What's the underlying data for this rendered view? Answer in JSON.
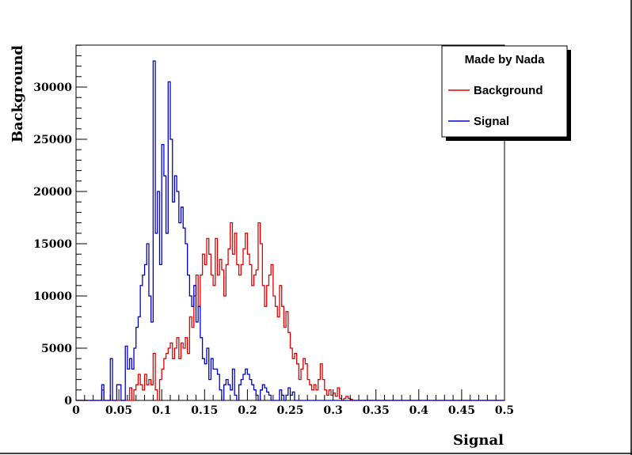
{
  "chart_data": {
    "type": "line",
    "title": "",
    "xlabel": "Signal",
    "ylabel": "Background",
    "xlim": [
      0,
      0.5
    ],
    "ylim": [
      0,
      34000
    ],
    "x_ticks": [
      "0",
      "0.05",
      "0.1",
      "0.15",
      "0.2",
      "0.25",
      "0.3",
      "0.35",
      "0.4",
      "0.45",
      "0.5"
    ],
    "y_ticks": [
      "0",
      "5000",
      "10000",
      "15000",
      "20000",
      "25000",
      "30000"
    ],
    "legend": {
      "header": "Made by Nada",
      "placement": "top-right",
      "entries": [
        "Background",
        "Signal"
      ]
    },
    "bin_width": 0.0025,
    "series": [
      {
        "name": "Background",
        "color": "#e00000",
        "x_start": 0.0,
        "values": [
          0,
          0,
          0,
          0,
          0,
          0,
          0,
          0,
          0,
          0,
          0,
          0,
          1000,
          0,
          0,
          0,
          0,
          0,
          0,
          0,
          0,
          0,
          0,
          0,
          0,
          1200,
          0,
          1000,
          1500,
          2500,
          1500,
          1000,
          2500,
          1500,
          2000,
          1500,
          4500,
          1000,
          0,
          2000,
          3000,
          4000,
          4500,
          5000,
          5500,
          4000,
          5000,
          6000,
          4000,
          5500,
          5000,
          6000,
          4500,
          8000,
          7000,
          10000,
          12000,
          9000,
          12000,
          14000,
          13000,
          15500,
          14000,
          12000,
          11000,
          15500,
          12000,
          13500,
          12500,
          10000,
          13000,
          14500,
          17000,
          14000,
          16000,
          13000,
          12000,
          13000,
          14500,
          16000,
          14000,
          13000,
          11000,
          12000,
          12500,
          17000,
          15000,
          11000,
          9000,
          11000,
          12000,
          13000,
          10000,
          9000,
          8000,
          11000,
          9000,
          7000,
          8500,
          6500,
          5000,
          4000,
          4500,
          3500,
          2000,
          3000,
          4000,
          3500,
          2000,
          1500,
          1000,
          1500,
          1000,
          2000,
          3500,
          2000,
          1000,
          500,
          1000,
          500,
          700,
          400,
          1200,
          200,
          0,
          200,
          400,
          200,
          100,
          0,
          0,
          0,
          0,
          0,
          0,
          0,
          0,
          0,
          0,
          0,
          0,
          0,
          0,
          0,
          0,
          0,
          0,
          0,
          0,
          0,
          0,
          0,
          0,
          0,
          0,
          0,
          0,
          0,
          0,
          0,
          0,
          0,
          0,
          0,
          0,
          0,
          0,
          0,
          0,
          0,
          0,
          0,
          0,
          0,
          0,
          0,
          0,
          0,
          0,
          0,
          0,
          0,
          0,
          0,
          0,
          0,
          0,
          0,
          0,
          0,
          0,
          0,
          0,
          0,
          0,
          0,
          0,
          0,
          0,
          0,
          0,
          0,
          0,
          0,
          0
        ]
      },
      {
        "name": "Signal",
        "color": "#0000cc",
        "x_start": 0.0,
        "values": [
          0,
          0,
          0,
          0,
          0,
          0,
          0,
          0,
          0,
          0,
          0,
          0,
          1500,
          0,
          0,
          0,
          4000,
          0,
          0,
          1500,
          1500,
          0,
          0,
          5200,
          3000,
          4000,
          3000,
          5000,
          7000,
          8000,
          11000,
          12000,
          13000,
          15000,
          10000,
          7500,
          32500,
          16000,
          20000,
          13000,
          24500,
          21500,
          16000,
          30500,
          25000,
          19000,
          21500,
          20000,
          17000,
          18500,
          16500,
          15000,
          12000,
          10000,
          9000,
          11000,
          7500,
          9000,
          6000,
          4000,
          3500,
          5000,
          2000,
          4000,
          3000,
          3000,
          2500,
          1000,
          0,
          1500,
          2000,
          1500,
          1000,
          3000,
          500,
          0,
          1500,
          2000,
          2500,
          3000,
          2500,
          2000,
          1500,
          1000,
          500,
          0,
          1000,
          1500,
          1200,
          800,
          500,
          0,
          0,
          0,
          0,
          1000,
          500,
          0,
          500,
          1200,
          500,
          800,
          0,
          0,
          0,
          0,
          0,
          0,
          0,
          0,
          0,
          0,
          0,
          0,
          0,
          0,
          0,
          0,
          0,
          0,
          0,
          0,
          0,
          0,
          0,
          0,
          0,
          0,
          0,
          0,
          0,
          0,
          0,
          0,
          0,
          0,
          0,
          0,
          0,
          0,
          0,
          0,
          0,
          0,
          0,
          0,
          0,
          0,
          0,
          0,
          0,
          0,
          0,
          0,
          0,
          0,
          0,
          0,
          0,
          0,
          0,
          0,
          0,
          0,
          0,
          0,
          0,
          0,
          0,
          0,
          0,
          0,
          0,
          0,
          0,
          0,
          0,
          0,
          0,
          0,
          0,
          0,
          0,
          0,
          0,
          0,
          0,
          0,
          0,
          0,
          0,
          0,
          0,
          0,
          0,
          0,
          0,
          0,
          0,
          0,
          0,
          0,
          0,
          0,
          0
        ]
      }
    ]
  }
}
